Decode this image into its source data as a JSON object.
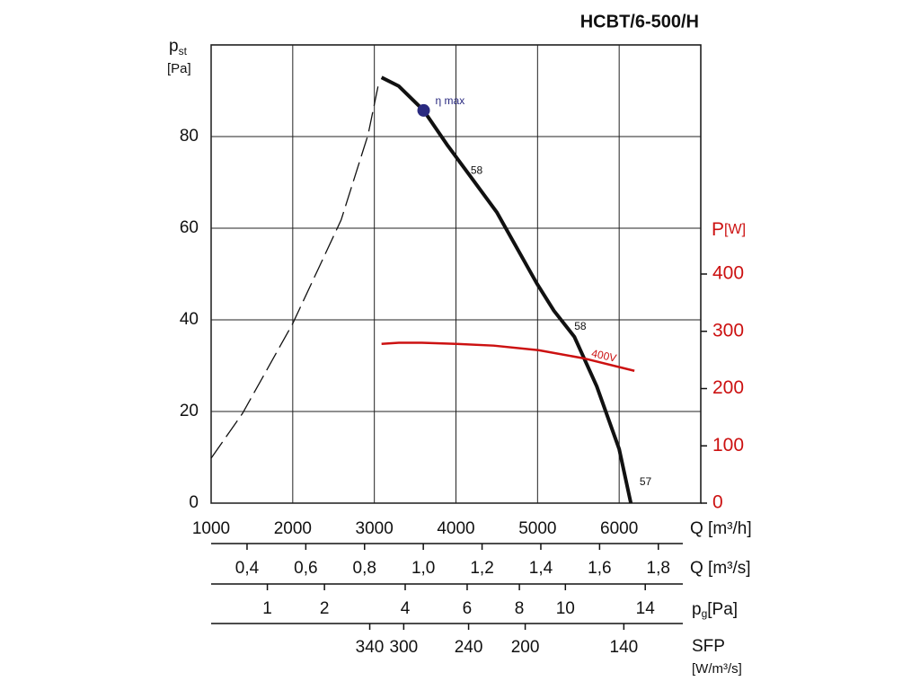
{
  "chart_data": {
    "type": "line",
    "title": "HCBT/6-500/H",
    "y_label": {
      "symbol": "p",
      "subscript": "st",
      "unit": "[Pa]"
    },
    "y2_label": {
      "symbol": "P",
      "unit": "[W]"
    },
    "x_label": "Q [m³/h]",
    "xlim": [
      1000,
      7000
    ],
    "xticks": [
      1000,
      2000,
      3000,
      4000,
      5000,
      6000
    ],
    "ylim": [
      0,
      100
    ],
    "yticks": [
      0,
      20,
      40,
      60,
      80
    ],
    "y2lim": [
      0,
      800
    ],
    "y2ticks": [
      0,
      100,
      200,
      300,
      400
    ],
    "grid": true,
    "y2_color": "#cc1111",
    "series": [
      {
        "style": "solid",
        "color": "#111111",
        "x": [
          3088,
          3300,
          3604,
          3900,
          4165,
          4500,
          4989,
          5200,
          5451,
          5725,
          6000,
          6143
        ],
        "values": [
          92.9,
          91,
          85.7,
          78,
          71.6,
          63.5,
          48,
          42,
          36.3,
          25.5,
          11.8,
          0
        ]
      },
      {
        "style": "dashed",
        "color": "#111111",
        "x": [
          1000,
          1385,
          2000,
          2593,
          2923,
          3055
        ],
        "values": [
          9.8,
          19.6,
          39.2,
          61.8,
          80.4,
          91.8
        ]
      },
      {
        "name": "400V",
        "style": "solid",
        "color": "#cc1111",
        "axis": "y2",
        "x": [
          3088,
          3300,
          3582,
          4000,
          4462,
          5011,
          5560,
          6187
        ],
        "values": [
          278,
          280,
          280,
          278,
          275,
          267,
          253,
          231
        ]
      }
    ],
    "point": {
      "label": "η max",
      "x": 3604,
      "y": 85.7,
      "color": "#2a2a80"
    },
    "annotations": [
      {
        "text": "58",
        "x": 4180,
        "y": 72.5
      },
      {
        "text": "58",
        "x": 5450,
        "y": 38.5
      },
      {
        "text": "57",
        "x": 6250,
        "y": 4.5
      }
    ],
    "flow_m3s": {
      "label": "Q [m³/s]",
      "ticks": [
        {
          "value": 0.4,
          "label": "0,4"
        },
        {
          "value": 0.6,
          "label": "0,6"
        },
        {
          "value": 0.8,
          "label": "0,8"
        },
        {
          "value": 1.0,
          "label": "1,0"
        },
        {
          "value": 1.2,
          "label": "1,2"
        },
        {
          "value": 1.4,
          "label": "1,4"
        },
        {
          "value": 1.6,
          "label": "1,6"
        },
        {
          "value": 1.8,
          "label": "1,8"
        }
      ]
    },
    "dynamic_pressure": {
      "symbol": "p",
      "subscript": "g",
      "unit": "[Pa]",
      "ticks": [
        1,
        2,
        4,
        6,
        8,
        10,
        14
      ]
    },
    "sfp": {
      "label": "SFP",
      "unit": "[W/m³/s]",
      "ticks": [
        340,
        300,
        240,
        200,
        140
      ]
    }
  }
}
